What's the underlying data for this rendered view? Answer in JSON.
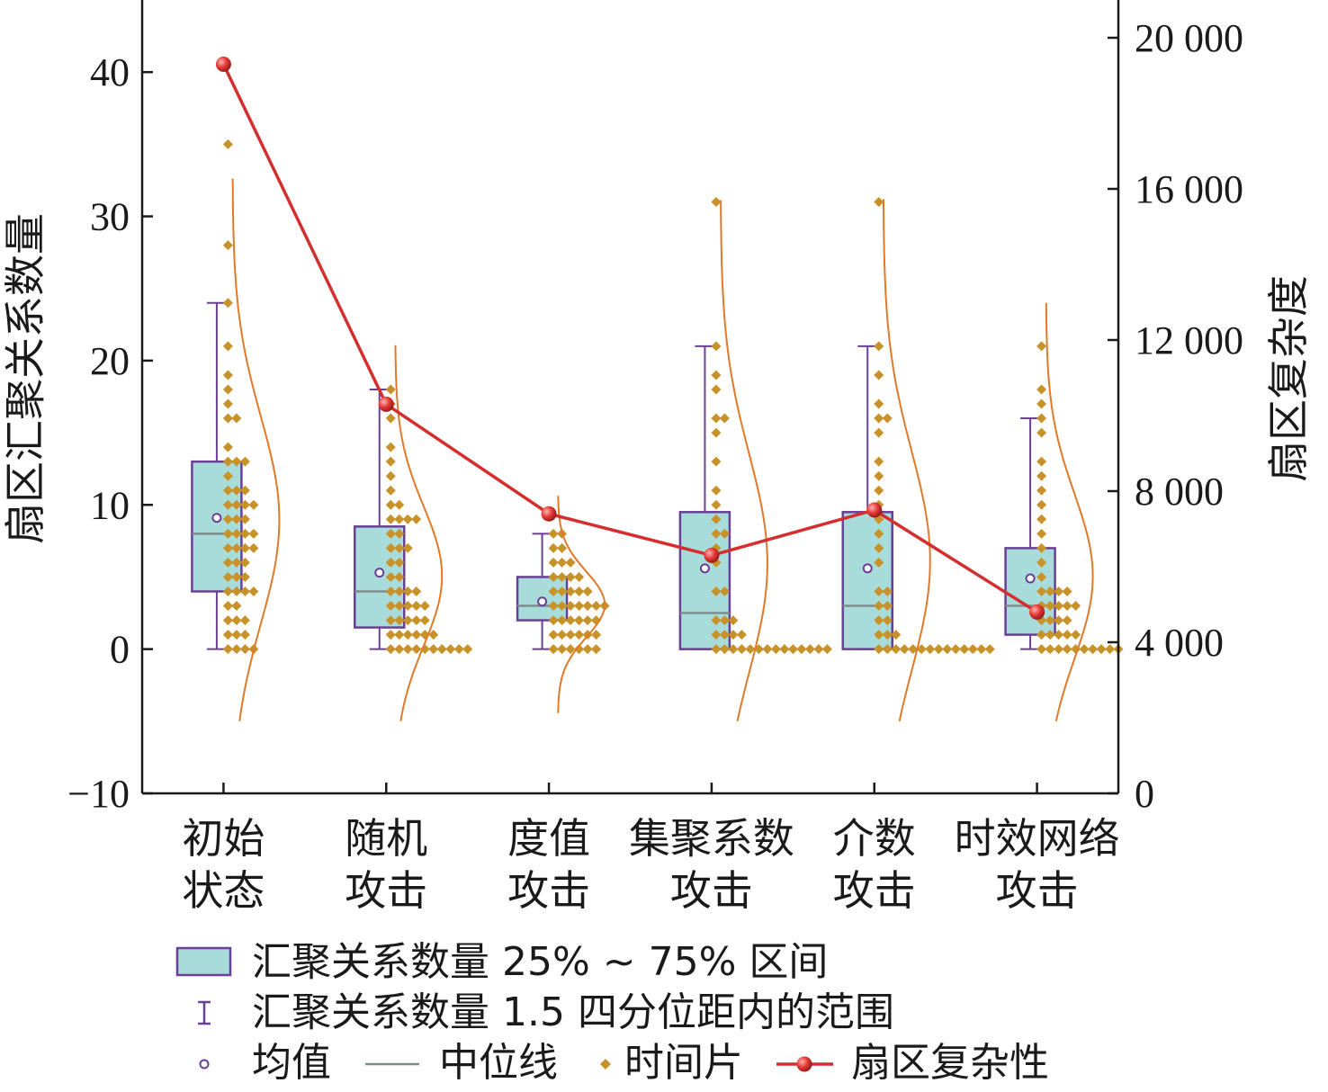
{
  "chart_data": {
    "type": "box",
    "categories": [
      [
        "初始",
        "状态"
      ],
      [
        "随机",
        "攻击"
      ],
      [
        "度值",
        "攻击"
      ],
      [
        "集聚系数",
        "攻击"
      ],
      [
        "介数",
        "攻击"
      ],
      [
        "时效网络",
        "攻击"
      ]
    ],
    "y_left": {
      "label": "扇区汇聚关系数量",
      "ylim": [
        -10,
        45
      ],
      "ticks": [
        -10,
        0,
        10,
        20,
        30,
        40
      ],
      "tick_labels": [
        "−10",
        "0",
        "10",
        "20",
        "30",
        "40"
      ]
    },
    "y_right": {
      "label": "扇区复杂度",
      "ylim": [
        0,
        21000
      ],
      "ticks": [
        0,
        4000,
        8000,
        12000,
        16000,
        20000
      ],
      "tick_labels": [
        "0",
        "4 000",
        "8 000",
        "12 000",
        "16 000",
        "20 000"
      ]
    },
    "boxes": [
      {
        "q1": 4,
        "median": 8,
        "q3": 13,
        "mean": 9.1,
        "whisker_low": 0,
        "whisker_high": 24
      },
      {
        "q1": 1.5,
        "median": 4,
        "q3": 8.5,
        "mean": 5.3,
        "whisker_low": 0,
        "whisker_high": 18
      },
      {
        "q1": 2,
        "median": 3,
        "q3": 5,
        "mean": 3.3,
        "whisker_low": 0,
        "whisker_high": 8
      },
      {
        "q1": 0,
        "median": 2.5,
        "q3": 9.5,
        "mean": 5.6,
        "whisker_low": 0,
        "whisker_high": 21
      },
      {
        "q1": 0,
        "median": 3,
        "q3": 9.5,
        "mean": 5.6,
        "whisker_low": 0,
        "whisker_high": 21
      },
      {
        "q1": 1,
        "median": 3,
        "q3": 7,
        "mean": 4.9,
        "whisker_low": 0,
        "whisker_high": 16
      }
    ],
    "time_slices": [
      [
        0,
        0,
        0,
        0,
        1,
        1,
        1,
        2,
        2,
        2,
        3,
        3,
        4,
        4,
        4,
        4,
        5,
        5,
        5,
        6,
        6,
        6,
        7,
        7,
        7,
        7,
        8,
        8,
        8,
        8,
        9,
        9,
        9,
        10,
        10,
        10,
        10,
        11,
        11,
        11,
        12,
        13,
        13,
        13,
        14,
        16,
        16,
        17,
        18,
        19,
        21,
        24,
        28,
        35
      ],
      [
        0,
        0,
        0,
        0,
        0,
        0,
        0,
        0,
        0,
        0,
        1,
        1,
        1,
        1,
        1,
        1,
        2,
        2,
        2,
        2,
        2,
        3,
        3,
        3,
        3,
        3,
        4,
        4,
        4,
        4,
        5,
        5,
        6,
        6,
        7,
        7,
        7,
        8,
        8,
        9,
        9,
        9,
        9,
        10,
        10,
        11,
        12,
        13,
        14,
        16,
        17,
        18
      ],
      [
        0,
        0,
        0,
        0,
        0,
        0,
        1,
        1,
        1,
        1,
        1,
        1,
        2,
        2,
        2,
        2,
        2,
        2,
        3,
        3,
        3,
        3,
        3,
        3,
        3,
        4,
        4,
        4,
        4,
        4,
        5,
        5,
        5,
        5,
        6,
        6,
        6,
        7,
        7,
        8,
        8
      ],
      [
        0,
        0,
        0,
        0,
        0,
        0,
        0,
        0,
        0,
        0,
        0,
        0,
        0,
        0,
        1,
        1,
        1,
        1,
        2,
        2,
        2,
        4,
        4,
        6,
        7,
        8,
        8,
        9,
        10,
        11,
        13,
        15,
        16,
        16,
        18,
        19,
        21,
        31
      ],
      [
        0,
        0,
        0,
        0,
        0,
        0,
        0,
        0,
        0,
        0,
        0,
        0,
        0,
        0,
        1,
        1,
        1,
        2,
        2,
        3,
        3,
        4,
        4,
        6,
        7,
        8,
        9,
        10,
        11,
        12,
        13,
        15,
        16,
        16,
        17,
        19,
        21,
        31
      ],
      [
        0,
        0,
        0,
        0,
        0,
        0,
        0,
        0,
        0,
        0,
        1,
        1,
        1,
        1,
        1,
        2,
        2,
        2,
        2,
        3,
        3,
        3,
        3,
        3,
        4,
        4,
        4,
        4,
        5,
        6,
        7,
        8,
        9,
        10,
        11,
        12,
        13,
        15,
        16,
        17,
        18,
        21
      ]
    ],
    "complexity_line": {
      "name": "扇区复杂性",
      "values": [
        19300,
        10300,
        7400,
        6300,
        7500,
        4800
      ]
    },
    "legend": [
      {
        "key": "box",
        "label": "汇聚关系数量 25% ~ 75% 区间"
      },
      {
        "key": "whisker",
        "label": "汇聚关系数量 1.5 四分位距内的范围"
      },
      {
        "key": "mean",
        "label": "均值"
      },
      {
        "key": "median",
        "label": "中位线"
      },
      {
        "key": "slice",
        "label": "时间片"
      },
      {
        "key": "complexity",
        "label": "扇区复杂性"
      }
    ],
    "colors": {
      "box_fill": "#a8dcda",
      "box_stroke": "#6a3f96",
      "median": "#7f8c8d",
      "slice": "#c8922a",
      "curve": "#e07a2a",
      "line": "#d32f2f",
      "marker": "#e53935",
      "axis": "#1a1a1a"
    }
  }
}
